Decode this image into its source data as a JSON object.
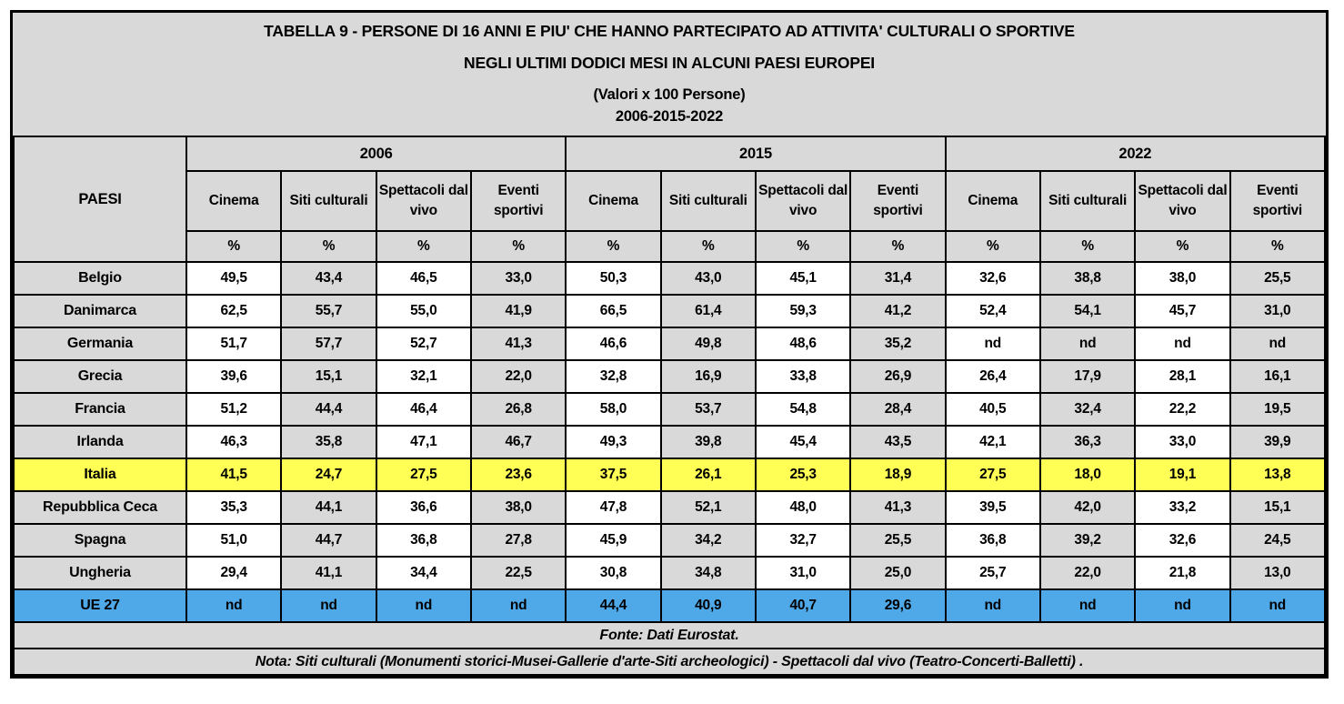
{
  "chart_data": {
    "type": "table",
    "title_lines": [
      "TABELLA 9 - PERSONE DI 16  ANNI E PIU' CHE HANNO PARTECIPATO AD ATTIVITA' CULTURALI O SPORTIVE",
      "NEGLI ULTIMI DODICI MESI IN ALCUNI PAESI EUROPEI",
      "(Valori x 100 Persone)",
      "2006-2015-2022"
    ],
    "country_column_header": "PAESI",
    "years": [
      "2006",
      "2015",
      "2022"
    ],
    "categories": [
      "Cinema",
      "Siti culturali",
      "Spettacoli dal vivo",
      "Eventi sportivi"
    ],
    "unit_symbol": "%",
    "rows": [
      {
        "country": "Belgio",
        "highlight": "none",
        "values": [
          "49,5",
          "43,4",
          "46,5",
          "33,0",
          "50,3",
          "43,0",
          "45,1",
          "31,4",
          "32,6",
          "38,8",
          "38,0",
          "25,5"
        ]
      },
      {
        "country": "Danimarca",
        "highlight": "none",
        "values": [
          "62,5",
          "55,7",
          "55,0",
          "41,9",
          "66,5",
          "61,4",
          "59,3",
          "41,2",
          "52,4",
          "54,1",
          "45,7",
          "31,0"
        ]
      },
      {
        "country": "Germania",
        "highlight": "none",
        "values": [
          "51,7",
          "57,7",
          "52,7",
          "41,3",
          "46,6",
          "49,8",
          "48,6",
          "35,2",
          "nd",
          "nd",
          "nd",
          "nd"
        ]
      },
      {
        "country": "Grecia",
        "highlight": "none",
        "values": [
          "39,6",
          "15,1",
          "32,1",
          "22,0",
          "32,8",
          "16,9",
          "33,8",
          "26,9",
          "26,4",
          "17,9",
          "28,1",
          "16,1"
        ]
      },
      {
        "country": "Francia",
        "highlight": "none",
        "values": [
          "51,2",
          "44,4",
          "46,4",
          "26,8",
          "58,0",
          "53,7",
          "54,8",
          "28,4",
          "40,5",
          "32,4",
          "22,2",
          "19,5"
        ]
      },
      {
        "country": "Irlanda",
        "highlight": "none",
        "values": [
          "46,3",
          "35,8",
          "47,1",
          "46,7",
          "49,3",
          "39,8",
          "45,4",
          "43,5",
          "42,1",
          "36,3",
          "33,0",
          "39,9"
        ]
      },
      {
        "country": "Italia",
        "highlight": "yellow",
        "values": [
          "41,5",
          "24,7",
          "27,5",
          "23,6",
          "37,5",
          "26,1",
          "25,3",
          "18,9",
          "27,5",
          "18,0",
          "19,1",
          "13,8"
        ]
      },
      {
        "country": "Repubblica Ceca",
        "highlight": "none",
        "values": [
          "35,3",
          "44,1",
          "36,6",
          "38,0",
          "47,8",
          "52,1",
          "48,0",
          "41,3",
          "39,5",
          "42,0",
          "33,2",
          "15,1"
        ]
      },
      {
        "country": "Spagna",
        "highlight": "none",
        "values": [
          "51,0",
          "44,7",
          "36,8",
          "27,8",
          "45,9",
          "34,2",
          "32,7",
          "25,5",
          "36,8",
          "39,2",
          "32,6",
          "24,5"
        ]
      },
      {
        "country": "Ungheria",
        "highlight": "none",
        "values": [
          "29,4",
          "41,1",
          "34,4",
          "22,5",
          "30,8",
          "34,8",
          "31,0",
          "25,0",
          "25,7",
          "22,0",
          "21,8",
          "13,0"
        ]
      },
      {
        "country": "UE 27",
        "highlight": "blue",
        "values": [
          "nd",
          "nd",
          "nd",
          "nd",
          "44,4",
          "40,9",
          "40,7",
          "29,6",
          "nd",
          "nd",
          "nd",
          "nd"
        ]
      }
    ],
    "footnotes": {
      "fonte": "Fonte: Dati Eurostat.",
      "nota": "Nota: Siti culturali (Monumenti storici-Musei-Gallerie d'arte-Siti archeologici) - Spettacoli dal vivo (Teatro-Concerti-Balletti) ."
    },
    "colors": {
      "sheet_bg": "#d9d9d9",
      "cell_white": "#ffffff",
      "italia_highlight": "#ffff55",
      "ue27_highlight": "#4fa8e8",
      "border": "#000000"
    },
    "layout_hints": {
      "grid": "on",
      "column_pattern": "data columns alternate white / grey starting with white under each year"
    }
  }
}
